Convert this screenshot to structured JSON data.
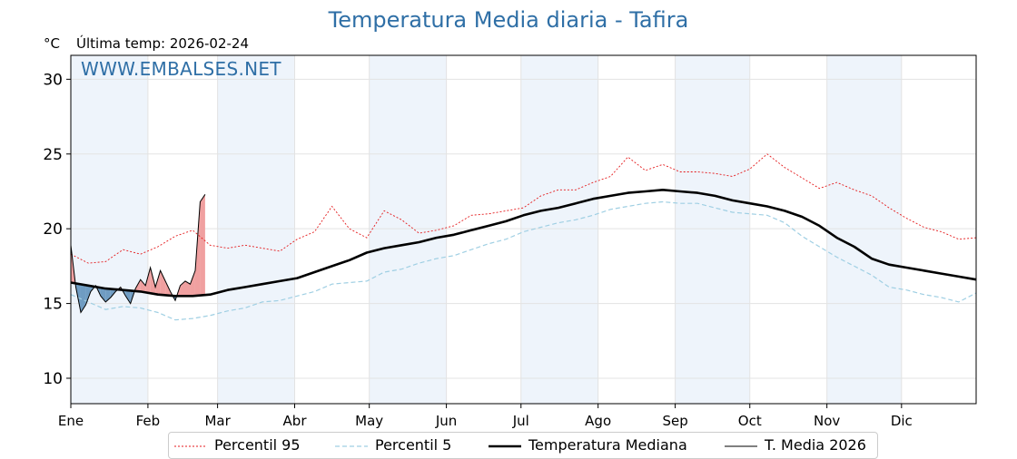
{
  "chart_data": {
    "type": "line",
    "title": "Temperatura Media diaria - Tafira",
    "unit_label": "°C",
    "last_temp_label": "Última temp: 2026-02-24",
    "watermark": "WWW.EMBALSES.NET",
    "x_tick_labels": [
      "Ene",
      "Feb",
      "Mar",
      "Abr",
      "May",
      "Jun",
      "Jul",
      "Ago",
      "Sep",
      "Oct",
      "Nov",
      "Dic"
    ],
    "month_start_days": [
      1,
      32,
      60,
      91,
      121,
      152,
      182,
      213,
      244,
      274,
      305,
      335
    ],
    "xlim": [
      1,
      365
    ],
    "ylim": [
      8.3,
      31.6
    ],
    "y_ticks": [
      10,
      15,
      20,
      25,
      30
    ],
    "grid": true,
    "shaded_months": [
      "Ene",
      "Mar",
      "May",
      "Jul",
      "Sep",
      "Nov"
    ],
    "legend_position": "bottom",
    "colors": {
      "p95": "#e41a1c",
      "p5": "#9fcfe3",
      "median": "#000000",
      "current": "#000000",
      "above_fill": "#f0a0a0",
      "below_fill": "#6f9cc2",
      "month_band": "#eef4fb",
      "title": "#2f6fa6"
    },
    "series": [
      {
        "name": "Percentil 95",
        "style": "dotted",
        "x": [
          1,
          8,
          15,
          22,
          29,
          36,
          43,
          50,
          57,
          64,
          71,
          78,
          85,
          92,
          99,
          106,
          113,
          120,
          127,
          134,
          141,
          148,
          155,
          162,
          169,
          176,
          183,
          190,
          197,
          204,
          211,
          218,
          225,
          232,
          239,
          246,
          253,
          260,
          267,
          274,
          281,
          288,
          295,
          302,
          309,
          316,
          323,
          330,
          337,
          344,
          351,
          358,
          365
        ],
        "y": [
          18.3,
          17.7,
          17.8,
          18.6,
          18.3,
          18.8,
          19.5,
          19.9,
          18.9,
          18.7,
          18.9,
          18.7,
          18.5,
          19.3,
          19.8,
          21.5,
          20.0,
          19.4,
          21.2,
          20.6,
          19.7,
          19.9,
          20.2,
          20.9,
          21.0,
          21.2,
          21.4,
          22.2,
          22.6,
          22.6,
          23.1,
          23.5,
          24.8,
          23.9,
          24.3,
          23.8,
          23.8,
          23.7,
          23.5,
          24.0,
          25.0,
          24.1,
          23.4,
          22.7,
          23.1,
          22.6,
          22.2,
          21.4,
          20.7,
          20.1,
          19.8,
          19.3,
          19.4
        ]
      },
      {
        "name": "Percentil 5",
        "style": "dashed",
        "x": [
          1,
          8,
          15,
          22,
          29,
          36,
          43,
          50,
          57,
          64,
          71,
          78,
          85,
          92,
          99,
          106,
          113,
          120,
          127,
          134,
          141,
          148,
          155,
          162,
          169,
          176,
          183,
          190,
          197,
          204,
          211,
          218,
          225,
          232,
          239,
          246,
          253,
          260,
          267,
          274,
          281,
          288,
          295,
          302,
          309,
          316,
          323,
          330,
          337,
          344,
          351,
          358,
          365
        ],
        "y": [
          15.6,
          15.1,
          14.6,
          14.8,
          14.7,
          14.4,
          13.9,
          14.0,
          14.2,
          14.5,
          14.7,
          15.1,
          15.2,
          15.5,
          15.8,
          16.3,
          16.4,
          16.5,
          17.1,
          17.3,
          17.7,
          18.0,
          18.2,
          18.6,
          19.0,
          19.3,
          19.8,
          20.1,
          20.4,
          20.6,
          20.9,
          21.3,
          21.5,
          21.7,
          21.8,
          21.7,
          21.7,
          21.4,
          21.1,
          21.0,
          20.9,
          20.4,
          19.5,
          18.8,
          18.1,
          17.5,
          16.9,
          16.1,
          15.9,
          15.6,
          15.4,
          15.1,
          15.7
        ]
      },
      {
        "name": "Temperatura Mediana",
        "style": "solid-thick",
        "x": [
          1,
          8,
          15,
          22,
          29,
          36,
          43,
          50,
          57,
          64,
          71,
          78,
          85,
          92,
          99,
          106,
          113,
          120,
          127,
          134,
          141,
          148,
          155,
          162,
          169,
          176,
          183,
          190,
          197,
          204,
          211,
          218,
          225,
          232,
          239,
          246,
          253,
          260,
          267,
          274,
          281,
          288,
          295,
          302,
          309,
          316,
          323,
          330,
          337,
          344,
          351,
          358,
          365
        ],
        "y": [
          16.4,
          16.2,
          16.0,
          15.9,
          15.8,
          15.6,
          15.5,
          15.5,
          15.6,
          15.9,
          16.1,
          16.3,
          16.5,
          16.7,
          17.1,
          17.5,
          17.9,
          18.4,
          18.7,
          18.9,
          19.1,
          19.4,
          19.6,
          19.9,
          20.2,
          20.5,
          20.9,
          21.2,
          21.4,
          21.7,
          22.0,
          22.2,
          22.4,
          22.5,
          22.6,
          22.5,
          22.4,
          22.2,
          21.9,
          21.7,
          21.5,
          21.2,
          20.8,
          20.2,
          19.4,
          18.8,
          18.0,
          17.6,
          17.4,
          17.2,
          17.0,
          16.8,
          16.6
        ]
      },
      {
        "name": "T. Media 2026",
        "style": "solid-thin",
        "x": [
          1,
          3,
          5,
          7,
          9,
          11,
          13,
          15,
          17,
          19,
          21,
          23,
          25,
          27,
          29,
          31,
          33,
          35,
          37,
          39,
          41,
          43,
          45,
          47,
          49,
          51,
          53,
          55
        ],
        "y": [
          18.9,
          16.1,
          14.4,
          14.9,
          15.8,
          16.2,
          15.5,
          15.1,
          15.4,
          15.8,
          16.1,
          15.5,
          15.0,
          16.0,
          16.6,
          16.2,
          17.4,
          16.1,
          17.2,
          16.5,
          15.8,
          15.2,
          16.2,
          16.5,
          16.3,
          17.2,
          21.8,
          22.3
        ]
      }
    ]
  }
}
